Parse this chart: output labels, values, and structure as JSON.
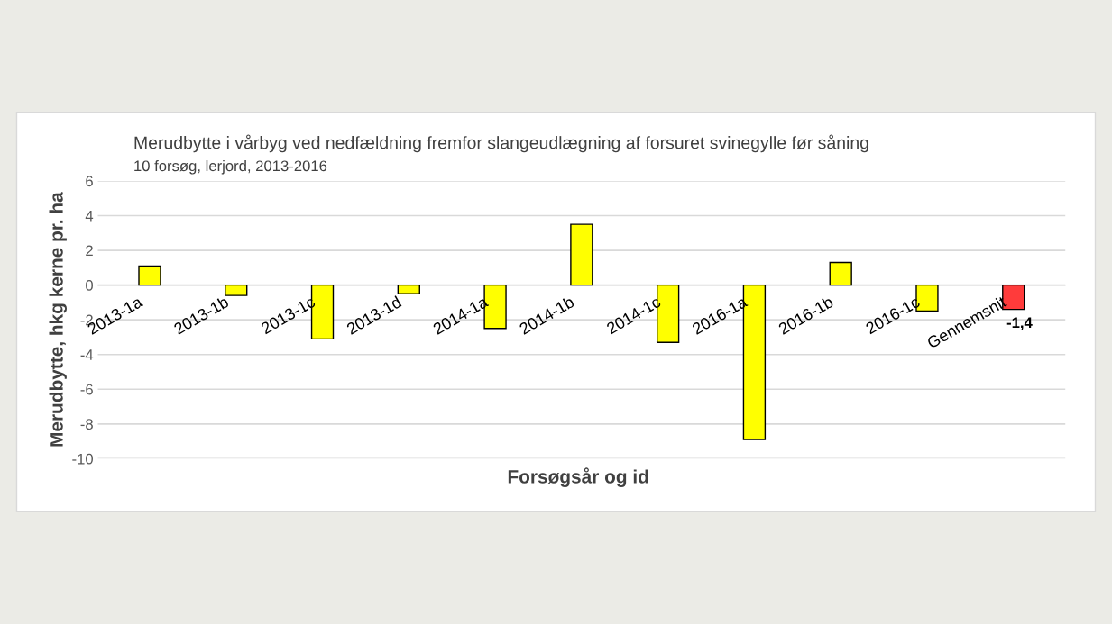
{
  "chart_data": {
    "type": "bar",
    "title": "Merudbytte i vårbyg ved nedfældning fremfor slangeudlægning af forsuret svinegylle før såning",
    "subtitle": "10 forsøg, lerjord, 2013-2016",
    "xlabel": "Forsøgsår og id",
    "ylabel": "Merudbytte, hkg kerne pr. ha",
    "categories": [
      "2013-1a",
      "2013-1b",
      "2013-1c",
      "2013-1d",
      "2014-1a",
      "2014-1b",
      "2014-1c",
      "2016-1a",
      "2016-1b",
      "2016-1c",
      "Gennemsnit"
    ],
    "values": [
      1.1,
      -0.6,
      -3.1,
      -0.5,
      -2.5,
      3.5,
      -3.3,
      -8.9,
      1.3,
      -1.5,
      -1.4
    ],
    "colors": [
      "#ffff00",
      "#ffff00",
      "#ffff00",
      "#ffff00",
      "#ffff00",
      "#ffff00",
      "#ffff00",
      "#ffff00",
      "#ffff00",
      "#ffff00",
      "#ff3b3b"
    ],
    "value_labels": [
      null,
      null,
      null,
      null,
      null,
      null,
      null,
      null,
      null,
      null,
      "-1,4"
    ],
    "ylim": [
      -10,
      6
    ],
    "yticks": [
      -10,
      -8,
      -6,
      -4,
      -2,
      0,
      2,
      4,
      6
    ],
    "grid": "y"
  }
}
